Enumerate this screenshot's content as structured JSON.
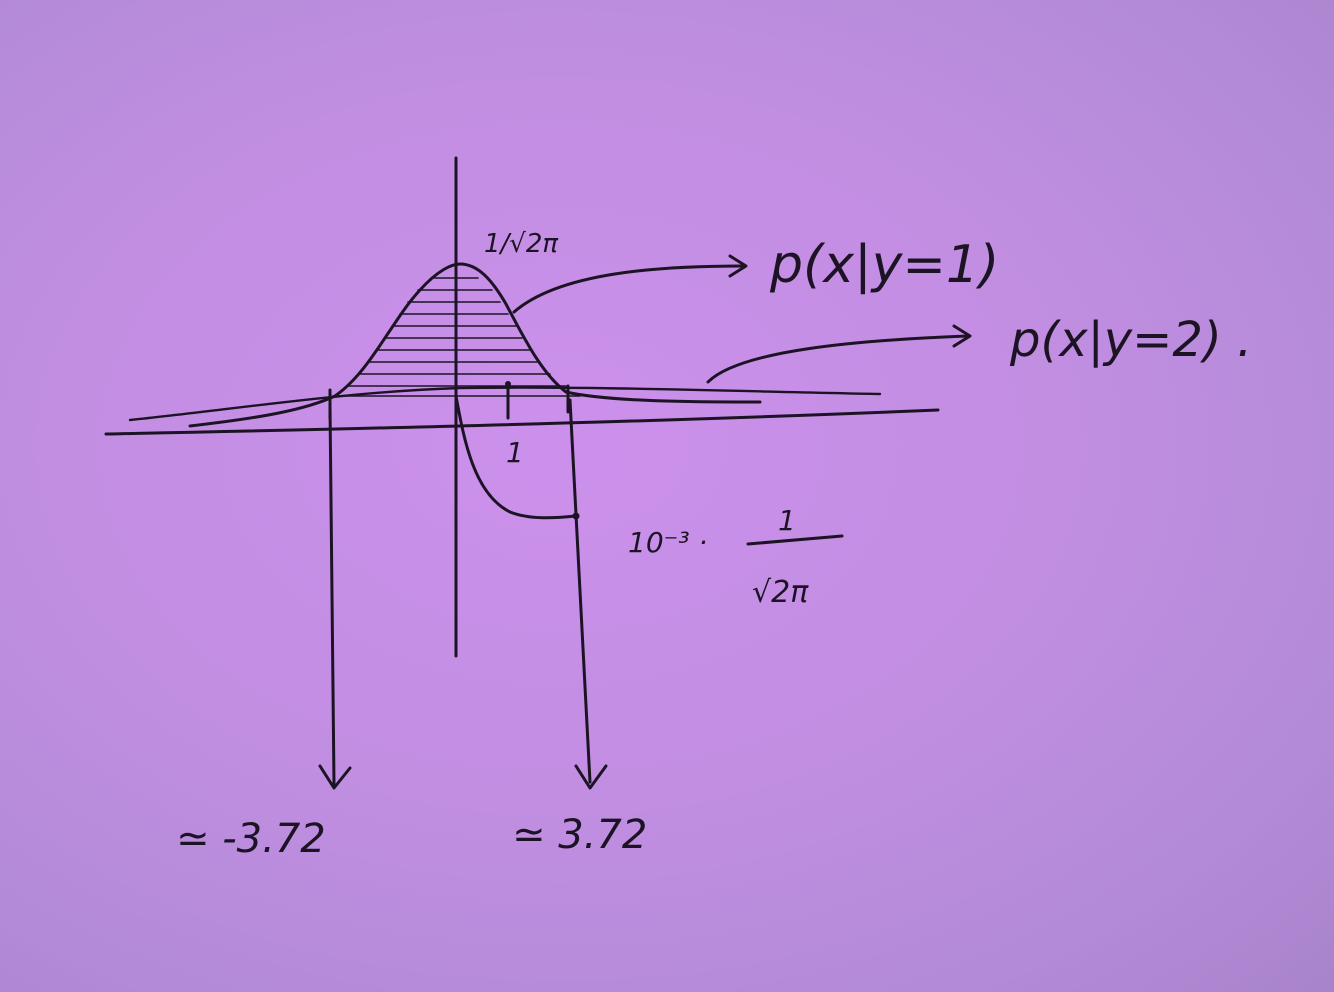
{
  "diagram": {
    "peak_label": "1/√2π",
    "label_p1": "p(x|y=1)",
    "label_p2": "p(x|y=2) .",
    "tick_label": "1",
    "threshold_factor": "10⁻³ ·",
    "threshold_numerator": "1",
    "threshold_denominator": "√2π",
    "left_root": "≃ -3.72",
    "right_root": "≃ 3.72"
  },
  "colors": {
    "paper": "#c28ee2",
    "ink": "#1c1424"
  }
}
